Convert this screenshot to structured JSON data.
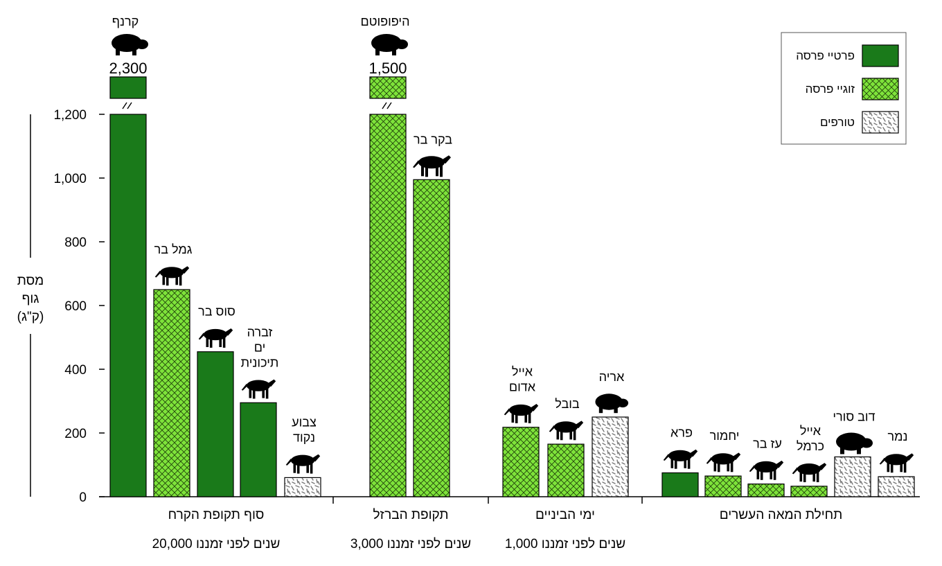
{
  "chart_data": {
    "type": "bar",
    "ylabel_lines": [
      "מסת",
      "גוף",
      "(ק\"ג)"
    ],
    "ylim": [
      0,
      1200
    ],
    "yticks": [
      "0",
      "200",
      "400",
      "600",
      "800",
      "1,000",
      "1,200"
    ],
    "axis_break": true,
    "legend": {
      "placement": "top-right",
      "items": [
        {
          "label": "פרטיי פרסה",
          "pattern": "solid"
        },
        {
          "label": "זוגיי פרסה",
          "pattern": "crosshatch"
        },
        {
          "label": "טורפים",
          "pattern": "dashes"
        }
      ]
    },
    "colors": {
      "solid": "#1a7a1a",
      "crosshatch": "#7ee33a",
      "dashes": "#8a8a8a"
    },
    "groups": [
      {
        "period": "סוף תקופת הקרח",
        "time": "20,000 שנים לפני זמננו",
        "bars": [
          {
            "label": [
              "קרנף"
            ],
            "value": 2300,
            "value_label": "2,300",
            "pattern": "solid",
            "icon": "rhino-icon",
            "broken": true
          },
          {
            "label": [
              "גמל בר"
            ],
            "value": 650,
            "pattern": "crosshatch",
            "icon": "camel-icon"
          },
          {
            "label": [
              "סוס בר"
            ],
            "value": 455,
            "pattern": "solid",
            "icon": "horse-icon"
          },
          {
            "label": [
              "זברה",
              "ים",
              "תיכונית"
            ],
            "value": 295,
            "pattern": "solid",
            "icon": "zebra-icon"
          },
          {
            "label": [
              "צבוע",
              "נקוד"
            ],
            "value": 60,
            "pattern": "dashes",
            "icon": "hyena-icon"
          }
        ]
      },
      {
        "period": "תקופת הברזל",
        "time": "3,000 שנים לפני זמננו",
        "bars": [
          {
            "label": [
              "היפופוטם"
            ],
            "value": 1500,
            "value_label": "1,500",
            "pattern": "crosshatch",
            "icon": "hippo-icon",
            "broken": true
          },
          {
            "label": [
              "בקר בר"
            ],
            "value": 995,
            "pattern": "crosshatch",
            "icon": "aurochs-icon"
          }
        ]
      },
      {
        "period": "ימי הביניים",
        "time": "1,000 שנים לפני זמננו",
        "bars": [
          {
            "label": [
              "אייל",
              "אדום"
            ],
            "value": 218,
            "pattern": "crosshatch",
            "icon": "red-deer-icon"
          },
          {
            "label": [
              "בובל"
            ],
            "value": 165,
            "pattern": "crosshatch",
            "icon": "hartebeest-icon"
          },
          {
            "label": [
              "אריה"
            ],
            "value": 250,
            "pattern": "dashes",
            "icon": "lion-icon"
          }
        ]
      },
      {
        "period": "תחילת המאה העשרים",
        "time": "",
        "bars": [
          {
            "label": [
              "פרא"
            ],
            "value": 75,
            "pattern": "solid",
            "icon": "wild-ass-icon"
          },
          {
            "label": [
              "יחמור"
            ],
            "value": 65,
            "pattern": "crosshatch",
            "icon": "fallow-deer-icon"
          },
          {
            "label": [
              "עז בר"
            ],
            "value": 40,
            "pattern": "crosshatch",
            "icon": "ibex-icon"
          },
          {
            "label": [
              "אייל",
              "כרמל"
            ],
            "value": 33,
            "pattern": "crosshatch",
            "icon": "roe-deer-icon"
          },
          {
            "label": [
              "דוב סורי"
            ],
            "value": 125,
            "pattern": "dashes",
            "icon": "bear-icon"
          },
          {
            "label": [
              "נמר"
            ],
            "value": 63,
            "pattern": "dashes",
            "icon": "leopard-icon"
          }
        ]
      }
    ]
  }
}
